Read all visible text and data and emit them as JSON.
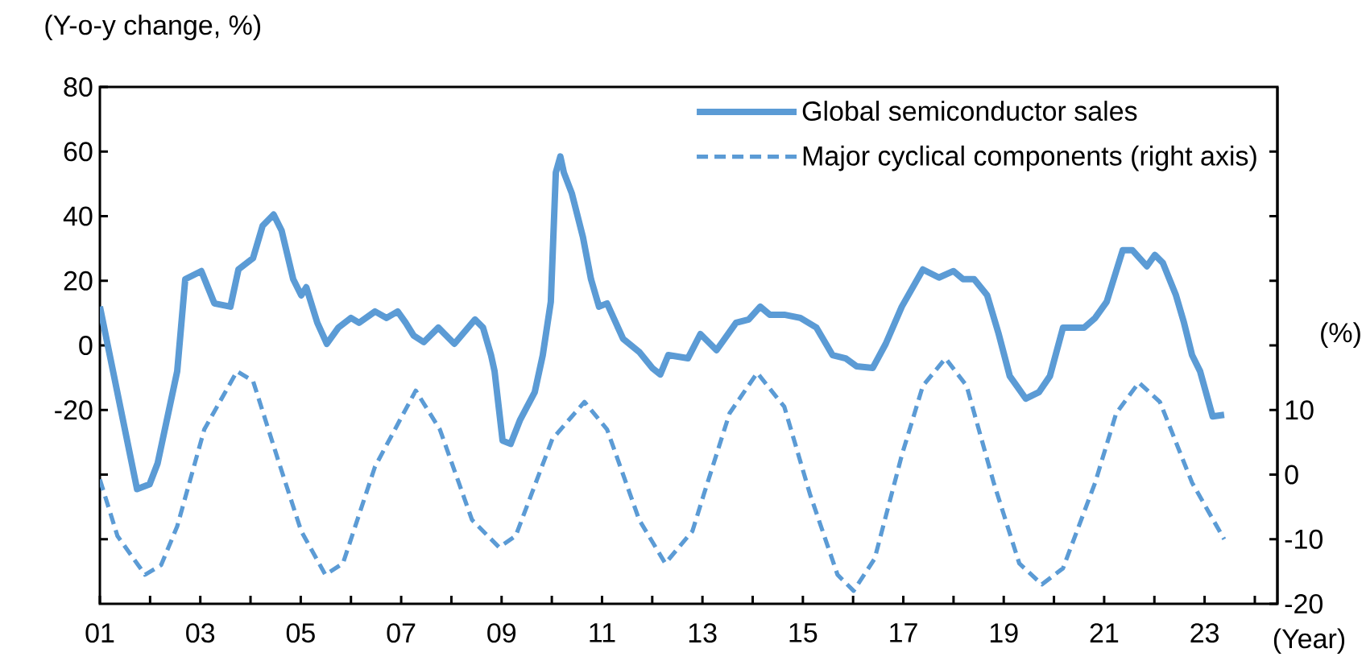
{
  "chart_data": {
    "type": "line",
    "xlabel": "(Year)",
    "ylabel": "(Y-o-y change, %)",
    "y2label": "(%)",
    "xlim": [
      2001,
      2024.45
    ],
    "xticks": [
      {
        "value": 2001,
        "label": "01"
      },
      {
        "value": 2002,
        "label": null
      },
      {
        "value": 2003,
        "label": "03"
      },
      {
        "value": 2004,
        "label": null
      },
      {
        "value": 2005,
        "label": "05"
      },
      {
        "value": 2006,
        "label": null
      },
      {
        "value": 2007,
        "label": "07"
      },
      {
        "value": 2008,
        "label": null
      },
      {
        "value": 2009,
        "label": "09"
      },
      {
        "value": 2010,
        "label": null
      },
      {
        "value": 2011,
        "label": "11"
      },
      {
        "value": 2012,
        "label": null
      },
      {
        "value": 2013,
        "label": "13"
      },
      {
        "value": 2014,
        "label": null
      },
      {
        "value": 2015,
        "label": "15"
      },
      {
        "value": 2016,
        "label": null
      },
      {
        "value": 2017,
        "label": "17"
      },
      {
        "value": 2018,
        "label": null
      },
      {
        "value": 2019,
        "label": "19"
      },
      {
        "value": 2020,
        "label": null
      },
      {
        "value": 2021,
        "label": "21"
      },
      {
        "value": 2022,
        "label": null
      },
      {
        "value": 2023,
        "label": "23"
      },
      {
        "value": 2024,
        "label": null
      }
    ],
    "ylim": [
      -80,
      80
    ],
    "yticks": [
      {
        "value": -60,
        "label": null
      },
      {
        "value": -40,
        "label": null
      },
      -20,
      0,
      20,
      40,
      60,
      80
    ],
    "y2lim": [
      -20,
      60
    ],
    "y2ticks": [
      -20,
      -10,
      0,
      10,
      {
        "value": 20,
        "label": null
      },
      {
        "value": 30,
        "label": null
      },
      {
        "value": 40,
        "label": null
      },
      {
        "value": 50,
        "label": null
      }
    ],
    "legend": "top right",
    "series": [
      {
        "name": "Global semiconductor sales",
        "color": "#5b9bd5",
        "axis": "y",
        "line_style": "solid",
        "x": [
          2001.0,
          2001.74,
          2001.99,
          2002.15,
          2002.54,
          2002.7,
          2003.02,
          2003.28,
          2003.6,
          2003.76,
          2004.05,
          2004.24,
          2004.46,
          2004.62,
          2004.85,
          2005.01,
          2005.11,
          2005.33,
          2005.52,
          2005.75,
          2006.0,
          2006.16,
          2006.48,
          2006.71,
          2006.93,
          2007.09,
          2007.25,
          2007.45,
          2007.74,
          2008.06,
          2008.47,
          2008.63,
          2008.79,
          2008.86,
          2009.02,
          2009.18,
          2009.37,
          2009.66,
          2009.82,
          2009.98,
          2010.08,
          2010.17,
          2010.24,
          2010.4,
          2010.62,
          2010.78,
          2010.94,
          2011.1,
          2011.42,
          2011.74,
          2012.0,
          2012.16,
          2012.32,
          2012.71,
          2012.96,
          2013.28,
          2013.67,
          2013.92,
          2014.15,
          2014.34,
          2014.63,
          2014.95,
          2015.27,
          2015.59,
          2015.85,
          2016.07,
          2016.39,
          2016.65,
          2016.97,
          2017.39,
          2017.71,
          2018.0,
          2018.19,
          2018.41,
          2018.67,
          2018.9,
          2019.12,
          2019.44,
          2019.7,
          2019.92,
          2020.18,
          2020.6,
          2020.82,
          2021.05,
          2021.37,
          2021.56,
          2021.85,
          2022.01,
          2022.17,
          2022.43,
          2022.59,
          2022.75,
          2022.91,
          2023.16,
          2023.39
        ],
        "values": [
          12,
          -44.5,
          -43,
          -36.5,
          -8,
          20.5,
          23,
          13,
          12,
          23.5,
          27,
          37,
          40.5,
          35.5,
          20.5,
          15.5,
          18,
          7,
          0.5,
          5.5,
          8.5,
          7,
          10.5,
          8.5,
          10.5,
          7,
          3,
          1,
          5.5,
          0.5,
          8,
          5.5,
          -3,
          -8,
          -29.5,
          -30.5,
          -23,
          -14.5,
          -3,
          13.5,
          53.5,
          58.5,
          53.5,
          47,
          33.5,
          20.5,
          12,
          13,
          2,
          -2,
          -7,
          -9,
          -3,
          -4,
          3.5,
          -1.5,
          7,
          8,
          12,
          9.5,
          9.5,
          8.5,
          5.5,
          -3,
          -4,
          -6.5,
          -7,
          0.5,
          12,
          23.5,
          21,
          23,
          20.5,
          20.5,
          15.5,
          3.5,
          -9.5,
          -16.5,
          -14.5,
          -9.5,
          5.5,
          5.5,
          8.5,
          13.5,
          29.5,
          29.5,
          24.5,
          28,
          25.5,
          15.5,
          7,
          -3,
          -8,
          -22,
          -21.5
        ]
      },
      {
        "name": "Major cyclical components (right axis)",
        "color": "#5b9bd5",
        "axis": "y2",
        "line_style": "dashed",
        "x": [
          2001.0,
          2001.35,
          2001.9,
          2002.22,
          2002.54,
          2003.08,
          2003.73,
          2004.05,
          2004.56,
          2005.01,
          2005.49,
          2005.84,
          2006.48,
          2007.29,
          2007.77,
          2008.41,
          2008.95,
          2009.28,
          2010.01,
          2010.65,
          2011.1,
          2011.74,
          2012.26,
          2012.8,
          2013.03,
          2013.54,
          2014.09,
          2014.63,
          2015.14,
          2015.69,
          2016.01,
          2016.43,
          2016.97,
          2017.39,
          2017.84,
          2018.26,
          2018.8,
          2019.31,
          2019.76,
          2020.18,
          2020.82,
          2021.24,
          2021.69,
          2022.11,
          2022.75,
          2023.39
        ],
        "values": [
          -0.75,
          -9.5,
          -15.5,
          -14,
          -8,
          7,
          16,
          14.5,
          2,
          -8.75,
          -15.5,
          -13.75,
          1.25,
          13,
          7,
          -7,
          -11.25,
          -9.5,
          5.5,
          11.25,
          7,
          -7,
          -13.75,
          -8.75,
          -3,
          9.5,
          15.75,
          10.5,
          -3,
          -15.5,
          -18,
          -13,
          3,
          13.75,
          18,
          13.75,
          -1.25,
          -13.75,
          -17,
          -14.5,
          -1.25,
          9.5,
          14.25,
          11.25,
          -1.25,
          -10
        ]
      }
    ]
  }
}
